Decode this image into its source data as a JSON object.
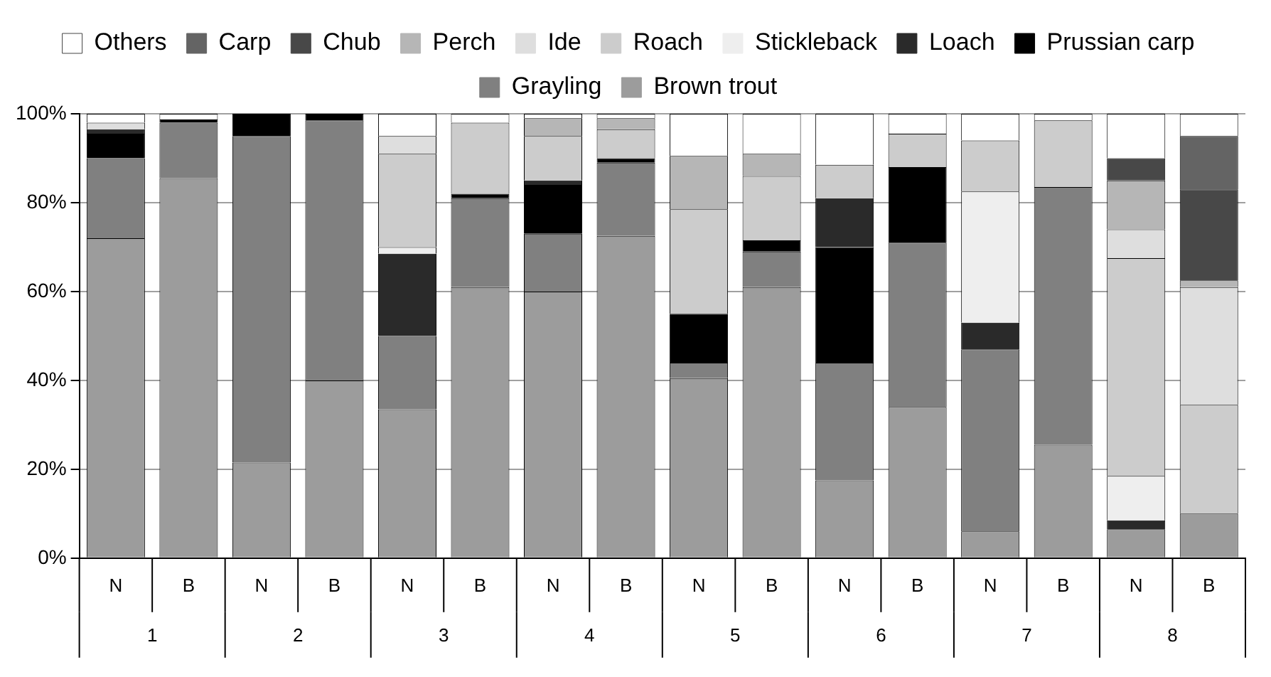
{
  "chart_data": {
    "type": "bar",
    "stacked": true,
    "legend": "top",
    "grid": "y",
    "categories": [
      "N",
      "B",
      "N",
      "B",
      "N",
      "B",
      "N",
      "B",
      "N",
      "B",
      "N",
      "B",
      "N",
      "B",
      "N",
      "B"
    ],
    "annotations": [
      "1",
      "2",
      "3",
      "4",
      "5",
      "6",
      "7",
      "8"
    ],
    "ylim": [
      0,
      100
    ],
    "yticks": [
      {
        "value": 0,
        "label": "0%"
      },
      {
        "value": 20,
        "label": "20%"
      },
      {
        "value": 40,
        "label": "40%"
      },
      {
        "value": 60,
        "label": "60%"
      },
      {
        "value": 80,
        "label": "80%"
      },
      {
        "value": 100,
        "label": "100%"
      }
    ],
    "series": [
      {
        "name": "Brown trout",
        "color": "#9c9c9c",
        "values": [
          72,
          85.5,
          21.5,
          40,
          33.5,
          61,
          60,
          72.5,
          40.5,
          61,
          17.5,
          34,
          6,
          25.5,
          6.5,
          10
        ]
      },
      {
        "name": "Grayling",
        "color": "#808080",
        "values": [
          18,
          12.5,
          73.5,
          58.5,
          16.5,
          20,
          13,
          16.5,
          3.5,
          8,
          26.5,
          37,
          41,
          58,
          0,
          0
        ]
      },
      {
        "name": "Prussian carp",
        "color": "#000000",
        "values": [
          5.5,
          0.7,
          5,
          1.5,
          0,
          1,
          11,
          1,
          11,
          2.5,
          26,
          17,
          0,
          0,
          0,
          0
        ]
      },
      {
        "name": "Loach",
        "color": "#2a2a2a",
        "values": [
          1,
          0,
          0,
          0,
          18.5,
          0,
          1,
          0,
          0,
          0,
          11,
          0,
          6,
          0,
          2,
          0
        ]
      },
      {
        "name": "Stickleback",
        "color": "#eeeeee",
        "values": [
          0,
          0,
          0,
          0,
          1.5,
          0,
          0,
          0,
          0,
          0,
          0,
          0,
          29.5,
          0,
          10,
          0
        ]
      },
      {
        "name": "Roach",
        "color": "#cccccc",
        "values": [
          0,
          0,
          0,
          0,
          21,
          16,
          10,
          6.5,
          23.5,
          14.5,
          7.5,
          7.5,
          11.5,
          15,
          49,
          24.5
        ]
      },
      {
        "name": "Ide",
        "color": "#dedede",
        "values": [
          1.5,
          0,
          0,
          0,
          4,
          0,
          0,
          0,
          0,
          0,
          0,
          0,
          0,
          0,
          6.5,
          26.5
        ]
      },
      {
        "name": "Perch",
        "color": "#b6b6b6",
        "values": [
          0,
          0,
          0,
          0,
          0,
          0,
          4,
          2.5,
          12,
          5,
          0,
          0,
          0,
          0,
          11,
          1.5
        ]
      },
      {
        "name": "Chub",
        "color": "#484848",
        "values": [
          0,
          0,
          0,
          0,
          0,
          0,
          0,
          0,
          0,
          0,
          0,
          0,
          0,
          0,
          5,
          20.5
        ]
      },
      {
        "name": "Carp",
        "color": "#646464",
        "values": [
          0,
          0,
          0,
          0,
          0,
          0,
          0,
          0,
          0,
          0,
          0,
          0,
          0,
          0,
          0,
          12
        ]
      },
      {
        "name": "Others",
        "color": "#ffffff",
        "values": [
          2,
          1.3,
          0,
          0,
          5,
          2,
          1,
          1,
          9.5,
          9,
          11.5,
          4.5,
          6,
          1.5,
          10,
          5
        ]
      }
    ]
  }
}
